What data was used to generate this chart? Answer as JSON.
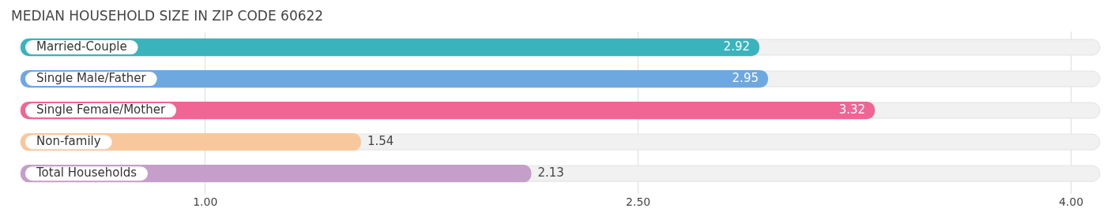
{
  "chart_data": {
    "type": "bar",
    "orientation": "horizontal",
    "title": "MEDIAN HOUSEHOLD SIZE IN ZIP CODE 60622",
    "categories": [
      "Married-Couple",
      "Single Male/Father",
      "Single Female/Mother",
      "Non-family",
      "Total Households"
    ],
    "values": [
      2.92,
      2.95,
      3.32,
      1.54,
      2.13
    ],
    "colors": [
      "#3ab3bd",
      "#6ea8e0",
      "#f06593",
      "#f8c89c",
      "#c59ec9"
    ],
    "xlim": [
      0.36,
      4.1
    ],
    "xticks": [
      {
        "value": 1,
        "label": "1.00"
      },
      {
        "value": 2.5,
        "label": "2.50"
      },
      {
        "value": 4,
        "label": "4.00"
      }
    ],
    "grid": "x",
    "data_labels": true,
    "legend": false
  }
}
